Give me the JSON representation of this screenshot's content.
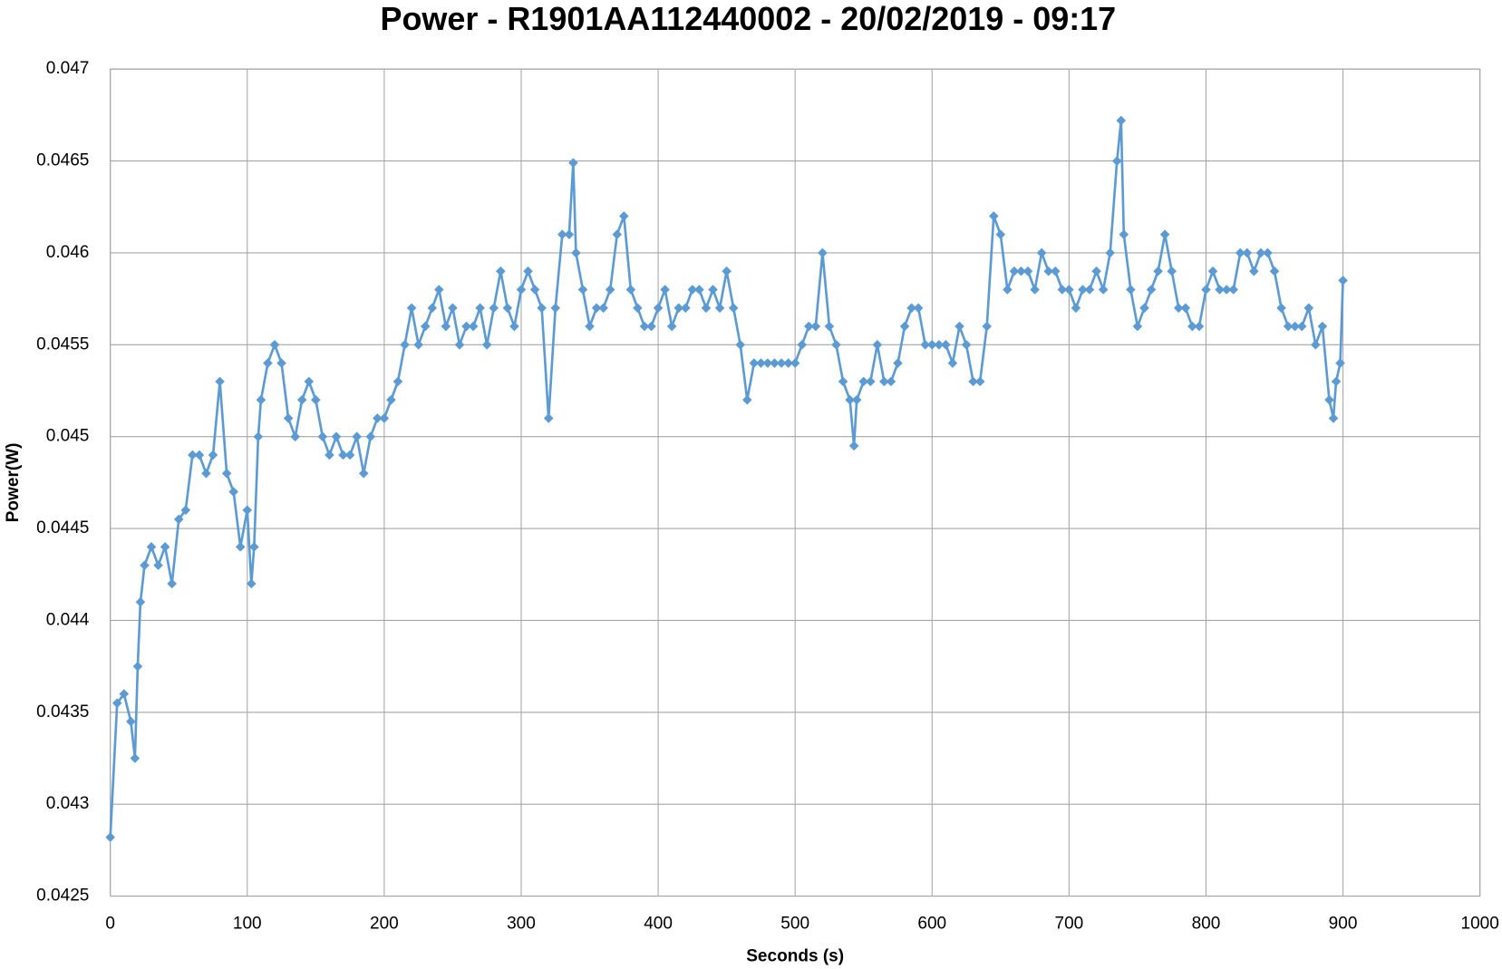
{
  "chart_data": {
    "type": "line",
    "title": "Power - R1901AA112440002 - 20/02/2019 - 09:17",
    "x_label": "Seconds (s)",
    "y_label": "Power(W)",
    "color": "#5b9bd5",
    "marker": "diamond",
    "grid": true,
    "xlim": [
      0,
      1000
    ],
    "xticks": [
      0,
      100,
      200,
      300,
      400,
      500,
      600,
      700,
      800,
      900,
      1000
    ],
    "ylim": [
      0.0425,
      0.047
    ],
    "yticks": [
      0.0425,
      0.043,
      0.0435,
      0.044,
      0.0445,
      0.045,
      0.0455,
      0.046,
      0.0465,
      0.047
    ],
    "x": [
      0,
      5,
      10,
      15,
      18,
      20,
      22,
      25,
      30,
      35,
      40,
      45,
      50,
      55,
      60,
      65,
      70,
      75,
      80,
      85,
      90,
      95,
      100,
      103,
      105,
      108,
      110,
      115,
      120,
      125,
      130,
      135,
      140,
      145,
      150,
      155,
      160,
      165,
      170,
      175,
      180,
      185,
      190,
      195,
      200,
      205,
      210,
      215,
      220,
      225,
      230,
      235,
      240,
      245,
      250,
      255,
      260,
      265,
      270,
      275,
      280,
      285,
      290,
      295,
      300,
      305,
      310,
      315,
      320,
      325,
      330,
      335,
      338,
      340,
      345,
      350,
      355,
      360,
      365,
      370,
      375,
      380,
      385,
      390,
      395,
      400,
      405,
      410,
      415,
      420,
      425,
      430,
      435,
      440,
      445,
      450,
      455,
      460,
      465,
      470,
      475,
      480,
      485,
      490,
      495,
      500,
      505,
      510,
      515,
      520,
      525,
      530,
      535,
      540,
      543,
      545,
      550,
      555,
      560,
      565,
      570,
      575,
      580,
      585,
      590,
      595,
      600,
      605,
      610,
      615,
      620,
      625,
      630,
      635,
      640,
      645,
      650,
      655,
      660,
      665,
      670,
      675,
      680,
      685,
      690,
      695,
      700,
      705,
      710,
      715,
      720,
      725,
      730,
      735,
      738,
      740,
      745,
      750,
      755,
      760,
      765,
      770,
      775,
      780,
      785,
      790,
      795,
      800,
      805,
      810,
      815,
      820,
      825,
      830,
      835,
      840,
      845,
      850,
      855,
      860,
      865,
      870,
      875,
      880,
      885,
      890,
      893,
      895,
      898,
      900
    ],
    "values": [
      0.04282,
      0.04355,
      0.0436,
      0.04345,
      0.04325,
      0.04375,
      0.0441,
      0.0443,
      0.0444,
      0.0443,
      0.0444,
      0.0442,
      0.04455,
      0.0446,
      0.0449,
      0.0449,
      0.0448,
      0.0449,
      0.0453,
      0.0448,
      0.0447,
      0.0444,
      0.0446,
      0.0442,
      0.0444,
      0.045,
      0.0452,
      0.0454,
      0.0455,
      0.0454,
      0.0451,
      0.045,
      0.0452,
      0.0453,
      0.0452,
      0.045,
      0.0449,
      0.045,
      0.0449,
      0.0449,
      0.045,
      0.0448,
      0.045,
      0.0451,
      0.0451,
      0.0452,
      0.0453,
      0.0455,
      0.0457,
      0.0455,
      0.0456,
      0.0457,
      0.0458,
      0.0456,
      0.0457,
      0.0455,
      0.0456,
      0.0456,
      0.0457,
      0.0455,
      0.0457,
      0.0459,
      0.0457,
      0.0456,
      0.0458,
      0.0459,
      0.0458,
      0.0457,
      0.0451,
      0.0457,
      0.0461,
      0.0461,
      0.04649,
      0.046,
      0.0458,
      0.0456,
      0.0457,
      0.0457,
      0.0458,
      0.0461,
      0.0462,
      0.0458,
      0.0457,
      0.0456,
      0.0456,
      0.0457,
      0.0458,
      0.0456,
      0.0457,
      0.0457,
      0.0458,
      0.0458,
      0.0457,
      0.0458,
      0.0457,
      0.0459,
      0.0457,
      0.0455,
      0.0452,
      0.0454,
      0.0454,
      0.0454,
      0.0454,
      0.0454,
      0.0454,
      0.0454,
      0.0455,
      0.0456,
      0.0456,
      0.046,
      0.0456,
      0.0455,
      0.0453,
      0.0452,
      0.04495,
      0.0452,
      0.0453,
      0.0453,
      0.0455,
      0.0453,
      0.0453,
      0.0454,
      0.0456,
      0.0457,
      0.0457,
      0.0455,
      0.0455,
      0.0455,
      0.0455,
      0.0454,
      0.0456,
      0.0455,
      0.0453,
      0.0453,
      0.0456,
      0.0462,
      0.0461,
      0.0458,
      0.0459,
      0.0459,
      0.0459,
      0.0458,
      0.046,
      0.0459,
      0.0459,
      0.0458,
      0.0458,
      0.0457,
      0.0458,
      0.0458,
      0.0459,
      0.0458,
      0.046,
      0.0465,
      0.04672,
      0.0461,
      0.0458,
      0.0456,
      0.0457,
      0.0458,
      0.0459,
      0.0461,
      0.0459,
      0.0457,
      0.0457,
      0.0456,
      0.0456,
      0.0458,
      0.0459,
      0.0458,
      0.0458,
      0.0458,
      0.046,
      0.046,
      0.0459,
      0.046,
      0.046,
      0.0459,
      0.0457,
      0.0456,
      0.0456,
      0.0456,
      0.0457,
      0.0455,
      0.0456,
      0.0452,
      0.0451,
      0.0453,
      0.0454,
      0.04585
    ]
  }
}
